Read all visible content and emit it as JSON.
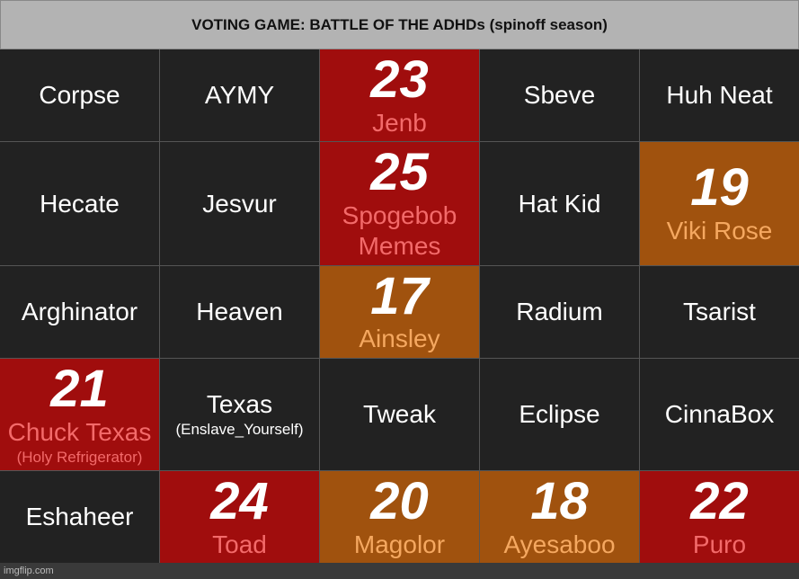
{
  "title": "VOTING GAME: BATTLE OF THE ADHDs (spinoff season)",
  "colors": {
    "alive": "#222222",
    "eliminated_red": "#a00d0d",
    "eliminated_orange": "#a0520e"
  },
  "cells": [
    {
      "name": "Corpse",
      "status": "alive"
    },
    {
      "name": "AYMY",
      "status": "alive"
    },
    {
      "name": "Jenb",
      "status": "red",
      "score": "23"
    },
    {
      "name": "Sbeve",
      "status": "alive"
    },
    {
      "name": "Huh Neat",
      "status": "alive"
    },
    {
      "name": "Hecate",
      "status": "alive"
    },
    {
      "name": "Jesvur",
      "status": "alive"
    },
    {
      "name": "Spogebob Memes",
      "status": "red",
      "score": "25"
    },
    {
      "name": "Hat Kid",
      "status": "alive"
    },
    {
      "name": "Viki Rose",
      "status": "orange",
      "score": "19"
    },
    {
      "name": "Arghinator",
      "status": "alive"
    },
    {
      "name": "Heaven",
      "status": "alive"
    },
    {
      "name": "Ainsley",
      "status": "orange",
      "score": "17"
    },
    {
      "name": "Radium",
      "status": "alive"
    },
    {
      "name": "Tsarist",
      "status": "alive"
    },
    {
      "name": "Chuck Texas",
      "sub": "(Holy Refrigerator)",
      "status": "red",
      "score": "21"
    },
    {
      "name": "Texas",
      "sub": "(Enslave_Yourself)",
      "status": "alive"
    },
    {
      "name": "Tweak",
      "status": "alive"
    },
    {
      "name": "Eclipse",
      "status": "alive"
    },
    {
      "name": "CinnaBox",
      "status": "alive"
    },
    {
      "name": "Eshaheer",
      "status": "alive"
    },
    {
      "name": "Toad",
      "status": "red",
      "score": "24"
    },
    {
      "name": "Magolor",
      "status": "orange",
      "score": "20"
    },
    {
      "name": "Ayesaboo",
      "status": "orange",
      "score": "18"
    },
    {
      "name": "Puro",
      "status": "red",
      "score": "22"
    }
  ],
  "watermark": "imgflip.com"
}
